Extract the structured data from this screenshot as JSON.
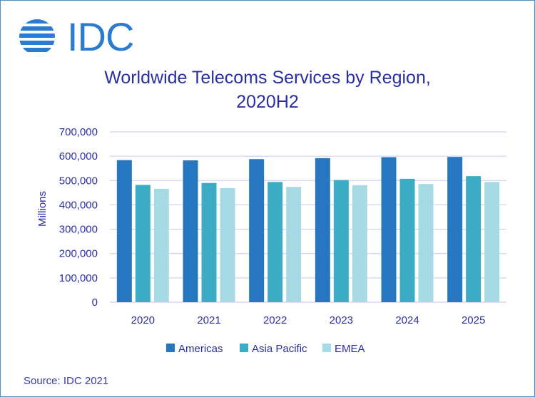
{
  "brand": {
    "logo_text": "IDC"
  },
  "chart_data": {
    "type": "bar",
    "title_line1": "Worldwide Telecoms Services by Region,",
    "title_line2": "2020H2",
    "ylabel": "Millions",
    "xlabel": "",
    "ylim": [
      0,
      700000
    ],
    "yticks": [
      0,
      100000,
      200000,
      300000,
      400000,
      500000,
      600000,
      700000
    ],
    "ytick_labels": [
      "0",
      "100,000",
      "200,000",
      "300,000",
      "400,000",
      "500,000",
      "600,000",
      "700,000"
    ],
    "categories": [
      "2020",
      "2021",
      "2022",
      "2023",
      "2024",
      "2025"
    ],
    "series": [
      {
        "name": "Americas",
        "color": "#2677c0",
        "values": [
          584000,
          583000,
          588000,
          592000,
          596000,
          597000
        ]
      },
      {
        "name": "Asia Pacific",
        "color": "#3cacc4",
        "values": [
          482000,
          490000,
          494000,
          502000,
          507000,
          518000
        ]
      },
      {
        "name": "EMEA",
        "color": "#a6dbe6",
        "values": [
          466000,
          469000,
          474000,
          481000,
          486000,
          494000
        ]
      }
    ],
    "grid": true,
    "legend": "bottom"
  },
  "source": "Source: IDC 2021"
}
